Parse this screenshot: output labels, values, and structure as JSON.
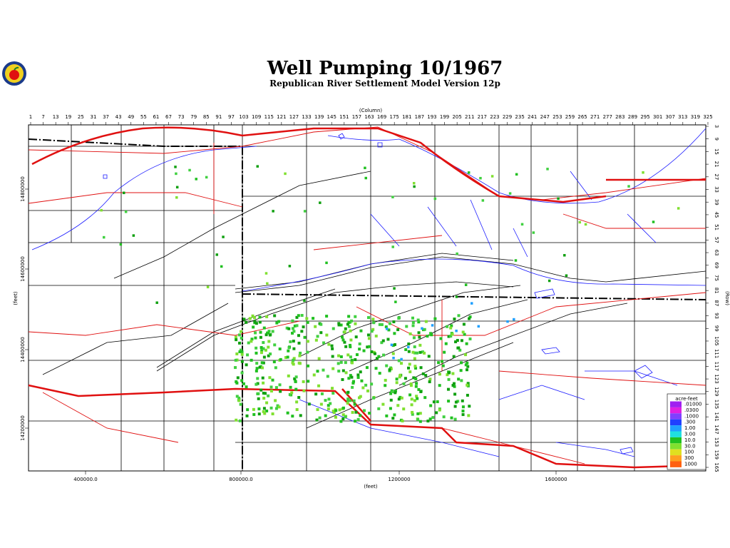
{
  "header": {
    "title": "Well Pumping 10/1967",
    "subtitle": "Republican River Settlement Model Version 12p"
  },
  "axes": {
    "column_label": "(Column)",
    "column_ticks": [
      "1",
      "7",
      "13",
      "19",
      "25",
      "31",
      "37",
      "43",
      "49",
      "55",
      "61",
      "67",
      "73",
      "79",
      "85",
      "91",
      "97",
      "103",
      "109",
      "115",
      "121",
      "127",
      "133",
      "139",
      "145",
      "151",
      "157",
      "163",
      "169",
      "175",
      "181",
      "187",
      "193",
      "199",
      "205",
      "211",
      "217",
      "223",
      "229",
      "235",
      "241",
      "247",
      "253",
      "259",
      "265",
      "271",
      "277",
      "283",
      "289",
      "295",
      "301",
      "307",
      "313",
      "319",
      "325"
    ],
    "row_label": "(Row)",
    "row_ticks": [
      "3",
      "9",
      "15",
      "21",
      "27",
      "33",
      "39",
      "45",
      "51",
      "57",
      "63",
      "69",
      "75",
      "81",
      "87",
      "93",
      "99",
      "105",
      "111",
      "117",
      "123",
      "129",
      "135",
      "141",
      "147",
      "153",
      "159",
      "165"
    ],
    "x_feet_label": "(feet)",
    "x_feet_ticks": [
      "400000.0",
      "800000.0",
      "1200000",
      "1600000"
    ],
    "y_feet_label": "(feet)",
    "y_feet_ticks": [
      "14800000",
      "14600000",
      "14400000",
      "14200000"
    ]
  },
  "legend": {
    "title": "acre-feet",
    "items": [
      {
        "label": ".01000",
        "color": "#a020f0"
      },
      {
        "label": ".0300",
        "color": "#e020e0"
      },
      {
        "label": ".1000",
        "color": "#8040ff"
      },
      {
        "label": ".300",
        "color": "#2040ff"
      },
      {
        "label": "1.00",
        "color": "#20a0ff"
      },
      {
        "label": "3.00",
        "color": "#20e0e0"
      },
      {
        "label": "10.0",
        "color": "#20c020"
      },
      {
        "label": "30.0",
        "color": "#80e030"
      },
      {
        "label": "100",
        "color": "#e0e020"
      },
      {
        "label": "300",
        "color": "#ffa020"
      },
      {
        "label": "1000",
        "color": "#ff6010"
      }
    ]
  }
}
